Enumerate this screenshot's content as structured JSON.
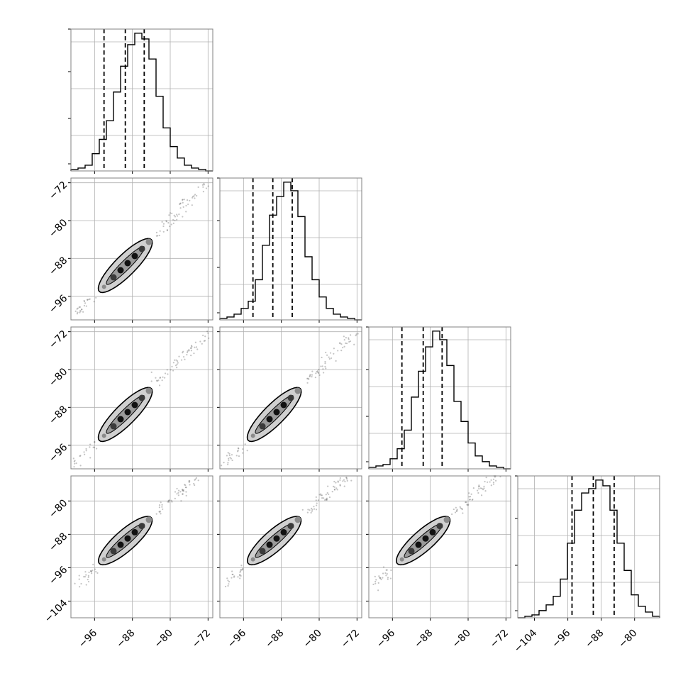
{
  "chart_data": {
    "type": "corner",
    "grid": true,
    "n_params": 4,
    "colors": {
      "line": "#000000",
      "frame": "#808080",
      "grid": "#b0b0b0",
      "fill": "#d0d0d0",
      "points": "#555555"
    },
    "params": [
      {
        "range": [
          -101,
          -71
        ],
        "xticks": [
          -96,
          -88,
          -80,
          -72
        ],
        "yticks": [
          -96,
          -88,
          -80,
          -72
        ],
        "quantiles": [
          -94,
          -89.5,
          -85.5
        ]
      },
      {
        "range": [
          -101,
          -71
        ],
        "xticks": [
          -96,
          -88,
          -80,
          -72
        ],
        "yticks": [
          -96,
          -88,
          -80,
          -72
        ],
        "quantiles": [
          -94,
          -89.8,
          -85.7
        ]
      },
      {
        "range": [
          -101,
          -71
        ],
        "xticks": [
          -96,
          -88,
          -80,
          -72
        ],
        "yticks": [
          -96,
          -88,
          -80,
          -72
        ],
        "quantiles": [
          -94,
          -89.5,
          -85.5
        ]
      },
      {
        "range": [
          -108,
          -74
        ],
        "xticks": [
          -104,
          -96,
          -88,
          -80
        ],
        "yticks": [
          -104,
          -96,
          -88,
          -80
        ],
        "quantiles": [
          -95,
          -89.9,
          -84.9
        ]
      }
    ],
    "histograms": [
      {
        "bins": [
          -101,
          -99.5,
          -98,
          -96.5,
          -95,
          -93.5,
          -92,
          -90.5,
          -89,
          -87.5,
          -86,
          -84.5,
          -83,
          -81.5,
          -80,
          -78.5,
          -77,
          -75.5,
          -74,
          -72.5,
          -71
        ],
        "counts": [
          1,
          2,
          4,
          12,
          22,
          35,
          55,
          73,
          88,
          96,
          92,
          78,
          52,
          30,
          17,
          9,
          4,
          2,
          1,
          0
        ]
      },
      {
        "bins": [
          -101,
          -99.5,
          -98,
          -96.5,
          -95,
          -93.5,
          -92,
          -90.5,
          -89,
          -87.5,
          -86,
          -84.5,
          -83,
          -81.5,
          -80,
          -78.5,
          -77,
          -75.5,
          -74,
          -72.5,
          -71
        ],
        "counts": [
          1,
          2,
          4,
          8,
          13,
          28,
          52,
          73,
          86,
          96,
          90,
          72,
          44,
          28,
          16,
          8,
          4,
          2,
          1,
          0
        ]
      },
      {
        "bins": [
          -101,
          -99.5,
          -98,
          -96.5,
          -95,
          -93.5,
          -92,
          -90.5,
          -89,
          -87.5,
          -86,
          -84.5,
          -83,
          -81.5,
          -80,
          -78.5,
          -77,
          -75.5,
          -74,
          -72.5,
          -71
        ],
        "counts": [
          1,
          2,
          3,
          7,
          14,
          27,
          50,
          68,
          85,
          96,
          90,
          72,
          47,
          33,
          18,
          9,
          5,
          2,
          1,
          0
        ]
      },
      {
        "bins": [
          -108,
          -106.3,
          -104.6,
          -102.9,
          -101.2,
          -99.5,
          -97.8,
          -96.1,
          -94.4,
          -92.7,
          -91,
          -89.3,
          -87.6,
          -85.9,
          -84.2,
          -82.5,
          -80.8,
          -79.1,
          -77.4,
          -75.7,
          -74
        ],
        "counts": [
          0,
          1,
          2,
          5,
          9,
          15,
          27,
          52,
          75,
          87,
          90,
          96,
          92,
          75,
          52,
          33,
          16,
          8,
          4,
          1
        ]
      }
    ],
    "joint": {
      "slope": 1.0,
      "scatter_sigma": 0.6,
      "contour_half_width": 2.2,
      "contour_span": [
        -95,
        -84
      ],
      "density_points": [
        -94,
        -92,
        -90.5,
        -89,
        -87.5,
        -86,
        -84.5
      ],
      "tail_span": [
        -100,
        -72
      ]
    }
  }
}
